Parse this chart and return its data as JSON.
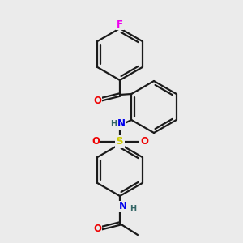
{
  "bg_color": "#ebebeb",
  "bond_color": "#1a1a1a",
  "atom_colors": {
    "F": "#ee00ee",
    "O": "#ee0000",
    "N": "#0000ee",
    "S": "#cccc00",
    "H": "#336666",
    "C": "#1a1a1a"
  },
  "bond_width": 1.6,
  "font_size_atom": 8.5,
  "title": ""
}
